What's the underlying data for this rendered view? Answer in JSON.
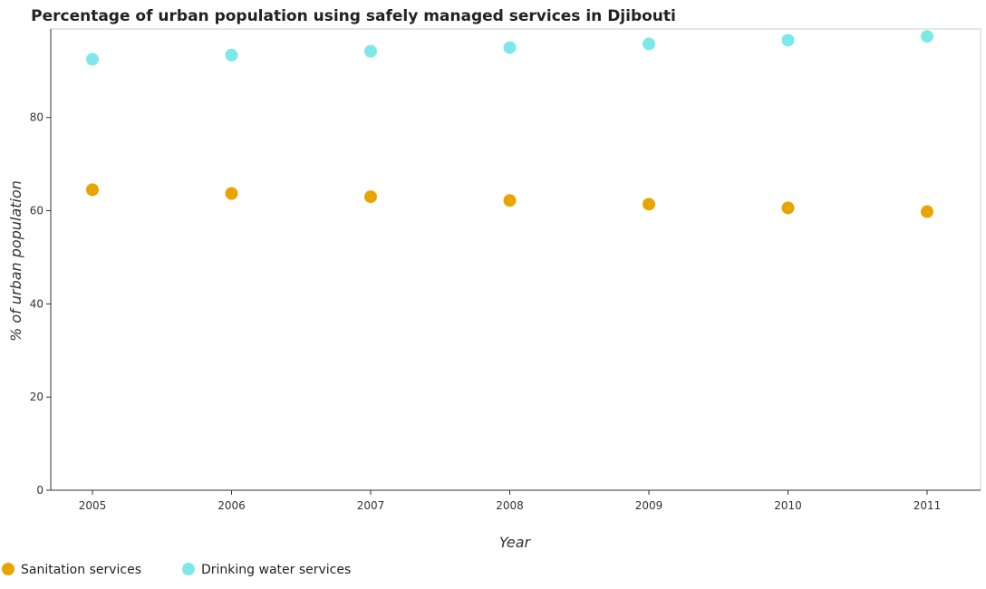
{
  "chart_data": {
    "type": "scatter",
    "title": "Percentage of urban population using safely managed services in Djibouti",
    "xlabel": "Year",
    "ylabel": "% of urban population",
    "categories": [
      "2005",
      "2006",
      "2007",
      "2008",
      "2009",
      "2010",
      "2011"
    ],
    "yticks": [
      "0",
      "20",
      "40",
      "60",
      "80"
    ],
    "ylim": [
      0,
      99
    ],
    "grid": false,
    "legend_position": "bottom-left",
    "series": [
      {
        "name": "Sanitation services",
        "color": "#e8a500",
        "values": [
          64.5,
          63.7,
          63.0,
          62.2,
          61.4,
          60.6,
          59.8
        ]
      },
      {
        "name": "Drinking water services",
        "color": "#7de8e8",
        "values": [
          92.5,
          93.4,
          94.2,
          95.0,
          95.8,
          96.6,
          97.4
        ]
      }
    ]
  }
}
